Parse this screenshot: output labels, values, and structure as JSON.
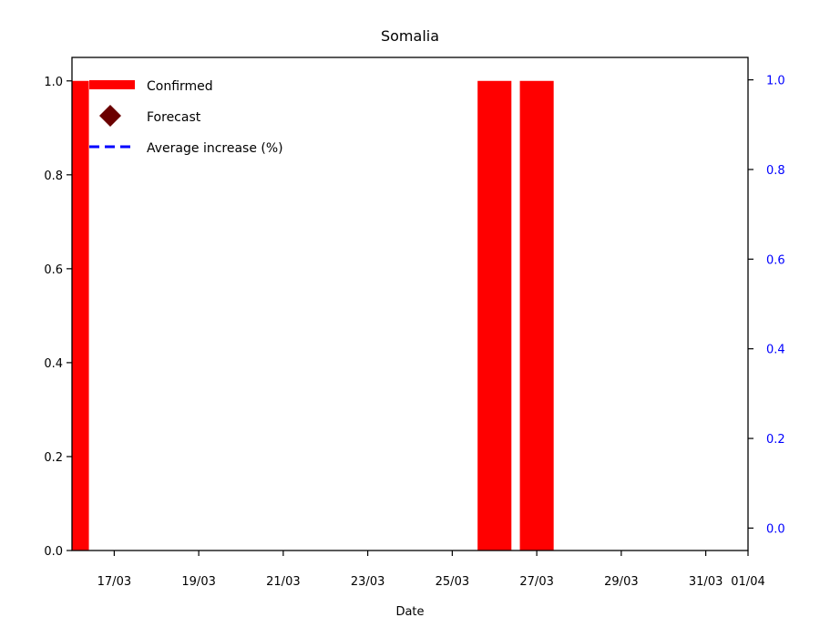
{
  "chart_data": {
    "type": "bar",
    "title": "Somalia",
    "xlabel": "Date",
    "ylabel": "",
    "x_tick_labels": [
      "17/03",
      "19/03",
      "21/03",
      "23/03",
      "25/03",
      "27/03",
      "29/03",
      "31/03",
      "01/04"
    ],
    "x_tick_days": [
      17,
      19,
      21,
      23,
      25,
      27,
      29,
      31,
      32
    ],
    "xlim_days": [
      16,
      32
    ],
    "ylim": [
      0,
      1.05
    ],
    "y_ticks": [
      "0.0",
      "0.2",
      "0.4",
      "0.6",
      "0.8",
      "1.0"
    ],
    "y_tick_values": [
      0,
      0.2,
      0.4,
      0.6,
      0.8,
      1.0
    ],
    "y2lim": [
      -0.05,
      1.05
    ],
    "y2_ticks": [
      "0.0",
      "0.2",
      "0.4",
      "0.6",
      "0.8",
      "1.0"
    ],
    "y2_tick_values": [
      0,
      0.2,
      0.4,
      0.6,
      0.8,
      1.0
    ],
    "series": [
      {
        "name": "Confirmed",
        "kind": "bar",
        "color": "#ff0000",
        "points": [
          {
            "date": "16/03",
            "day": 16,
            "value": 1
          },
          {
            "date": "26/03",
            "day": 26,
            "value": 1
          },
          {
            "date": "27/03",
            "day": 27,
            "value": 1
          }
        ]
      },
      {
        "name": "Forecast",
        "kind": "marker",
        "color": "#6b0000",
        "points": []
      },
      {
        "name": "Average increase (%)",
        "kind": "dashed-line",
        "color": "#0000ff",
        "axis": "right",
        "points": []
      }
    ],
    "legend_placement": "top-left",
    "right_axis_color": "#0000ff",
    "grid": false
  }
}
